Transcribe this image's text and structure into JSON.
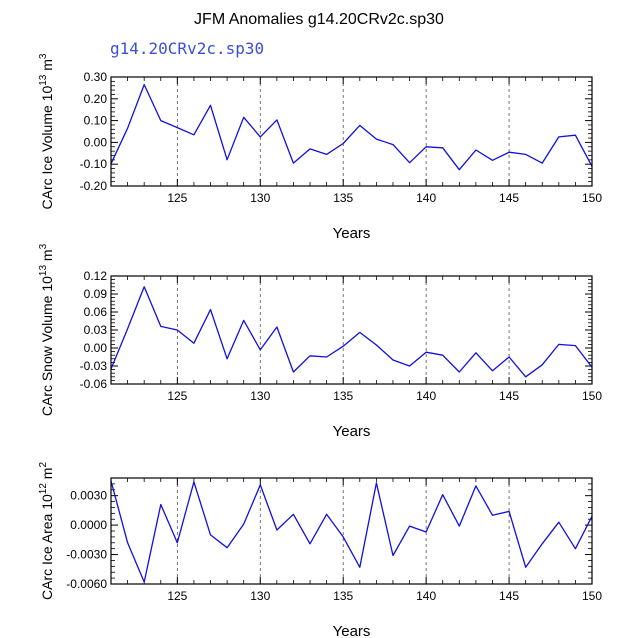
{
  "figure": {
    "title": "JFM Anomalies g14.20CRv2c.sp30",
    "subtitle": "g14.20CRv2c.sp30",
    "subtitle_color": "#3a4fd8",
    "line_color": "#1010e0"
  },
  "chart_data": [
    {
      "type": "line",
      "title": "",
      "xlabel": "Years",
      "ylabel_parts": [
        "CArc Ice Volume 10",
        "13",
        " m",
        "3"
      ],
      "xlim": [
        121,
        150
      ],
      "ylim": [
        -0.2,
        0.3
      ],
      "xticks": [
        125,
        130,
        135,
        140,
        145,
        150
      ],
      "yticks": [
        -0.2,
        -0.1,
        0.0,
        0.1,
        0.2,
        0.3
      ],
      "ytick_labels": [
        "-0.20",
        "-0.10",
        "0.00",
        "0.10",
        "0.20",
        "0.30"
      ],
      "grid_x": [
        125,
        130,
        135,
        140,
        145
      ],
      "series": [
        {
          "name": "g14.20CRv2c.sp30",
          "x": [
            121,
            122,
            123,
            124,
            125,
            126,
            127,
            128,
            129,
            130,
            131,
            132,
            133,
            134,
            135,
            136,
            137,
            138,
            139,
            140,
            141,
            142,
            143,
            144,
            145,
            146,
            147,
            148,
            149,
            150
          ],
          "values": [
            -0.098,
            0.065,
            0.265,
            0.1,
            0.068,
            0.035,
            0.17,
            -0.08,
            0.115,
            0.025,
            0.103,
            -0.095,
            -0.03,
            -0.055,
            -0.005,
            0.078,
            0.015,
            -0.01,
            -0.093,
            -0.02,
            -0.025,
            -0.125,
            -0.035,
            -0.082,
            -0.045,
            -0.055,
            -0.095,
            0.025,
            0.033,
            -0.11
          ]
        }
      ]
    },
    {
      "type": "line",
      "title": "",
      "xlabel": "Years",
      "ylabel_parts": [
        "CArc Snow Volume 10",
        "13",
        " m",
        "3"
      ],
      "xlim": [
        121,
        150
      ],
      "ylim": [
        -0.06,
        0.12
      ],
      "xticks": [
        125,
        130,
        135,
        140,
        145,
        150
      ],
      "yticks": [
        -0.06,
        -0.03,
        0.0,
        0.03,
        0.06,
        0.09,
        0.12
      ],
      "ytick_labels": [
        "-0.06",
        "-0.03",
        "0.00",
        "0.03",
        "0.06",
        "0.09",
        "0.12"
      ],
      "grid_x": [
        125,
        130,
        135,
        140,
        145
      ],
      "series": [
        {
          "name": "g14.20CRv2c.sp30",
          "x": [
            121,
            122,
            123,
            124,
            125,
            126,
            127,
            128,
            129,
            130,
            131,
            132,
            133,
            134,
            135,
            136,
            137,
            138,
            139,
            140,
            141,
            142,
            143,
            144,
            145,
            146,
            147,
            148,
            149,
            150
          ],
          "values": [
            -0.035,
            0.032,
            0.102,
            0.036,
            0.03,
            0.008,
            0.064,
            -0.018,
            0.046,
            -0.003,
            0.035,
            -0.04,
            -0.013,
            -0.015,
            0.003,
            0.026,
            0.005,
            -0.02,
            -0.03,
            -0.007,
            -0.012,
            -0.04,
            -0.008,
            -0.038,
            -0.015,
            -0.048,
            -0.028,
            0.006,
            0.004,
            -0.032
          ]
        }
      ]
    },
    {
      "type": "line",
      "title": "",
      "xlabel": "Years",
      "ylabel_parts": [
        "CArc Ice Area 10",
        "12",
        " m",
        "2"
      ],
      "xlim": [
        121,
        150
      ],
      "ylim": [
        -0.006,
        0.0048
      ],
      "xticks": [
        125,
        130,
        135,
        140,
        145,
        150
      ],
      "yticks": [
        -0.006,
        -0.003,
        0.0,
        0.003
      ],
      "ytick_labels": [
        "-0.0060",
        "-0.0030",
        "0.0000",
        "0.0030"
      ],
      "grid_x": [
        125,
        130,
        135,
        140,
        145
      ],
      "series": [
        {
          "name": "g14.20CRv2c.sp30",
          "x": [
            121,
            122,
            123,
            124,
            125,
            126,
            127,
            128,
            129,
            130,
            131,
            132,
            133,
            134,
            135,
            136,
            137,
            138,
            139,
            140,
            141,
            142,
            143,
            144,
            145,
            146,
            147,
            148,
            149,
            150
          ],
          "values": [
            0.0045,
            -0.0018,
            -0.0058,
            0.0021,
            -0.0018,
            0.0044,
            -0.001,
            -0.0023,
            0.0001,
            0.0041,
            -0.0005,
            0.0011,
            -0.0019,
            0.0011,
            -0.0012,
            -0.0043,
            0.0043,
            -0.0031,
            -0.0001,
            -0.0007,
            0.0031,
            -0.0001,
            0.004,
            0.001,
            0.0014,
            -0.0043,
            -0.0019,
            0.0003,
            -0.0024,
            0.0009
          ]
        }
      ]
    }
  ]
}
